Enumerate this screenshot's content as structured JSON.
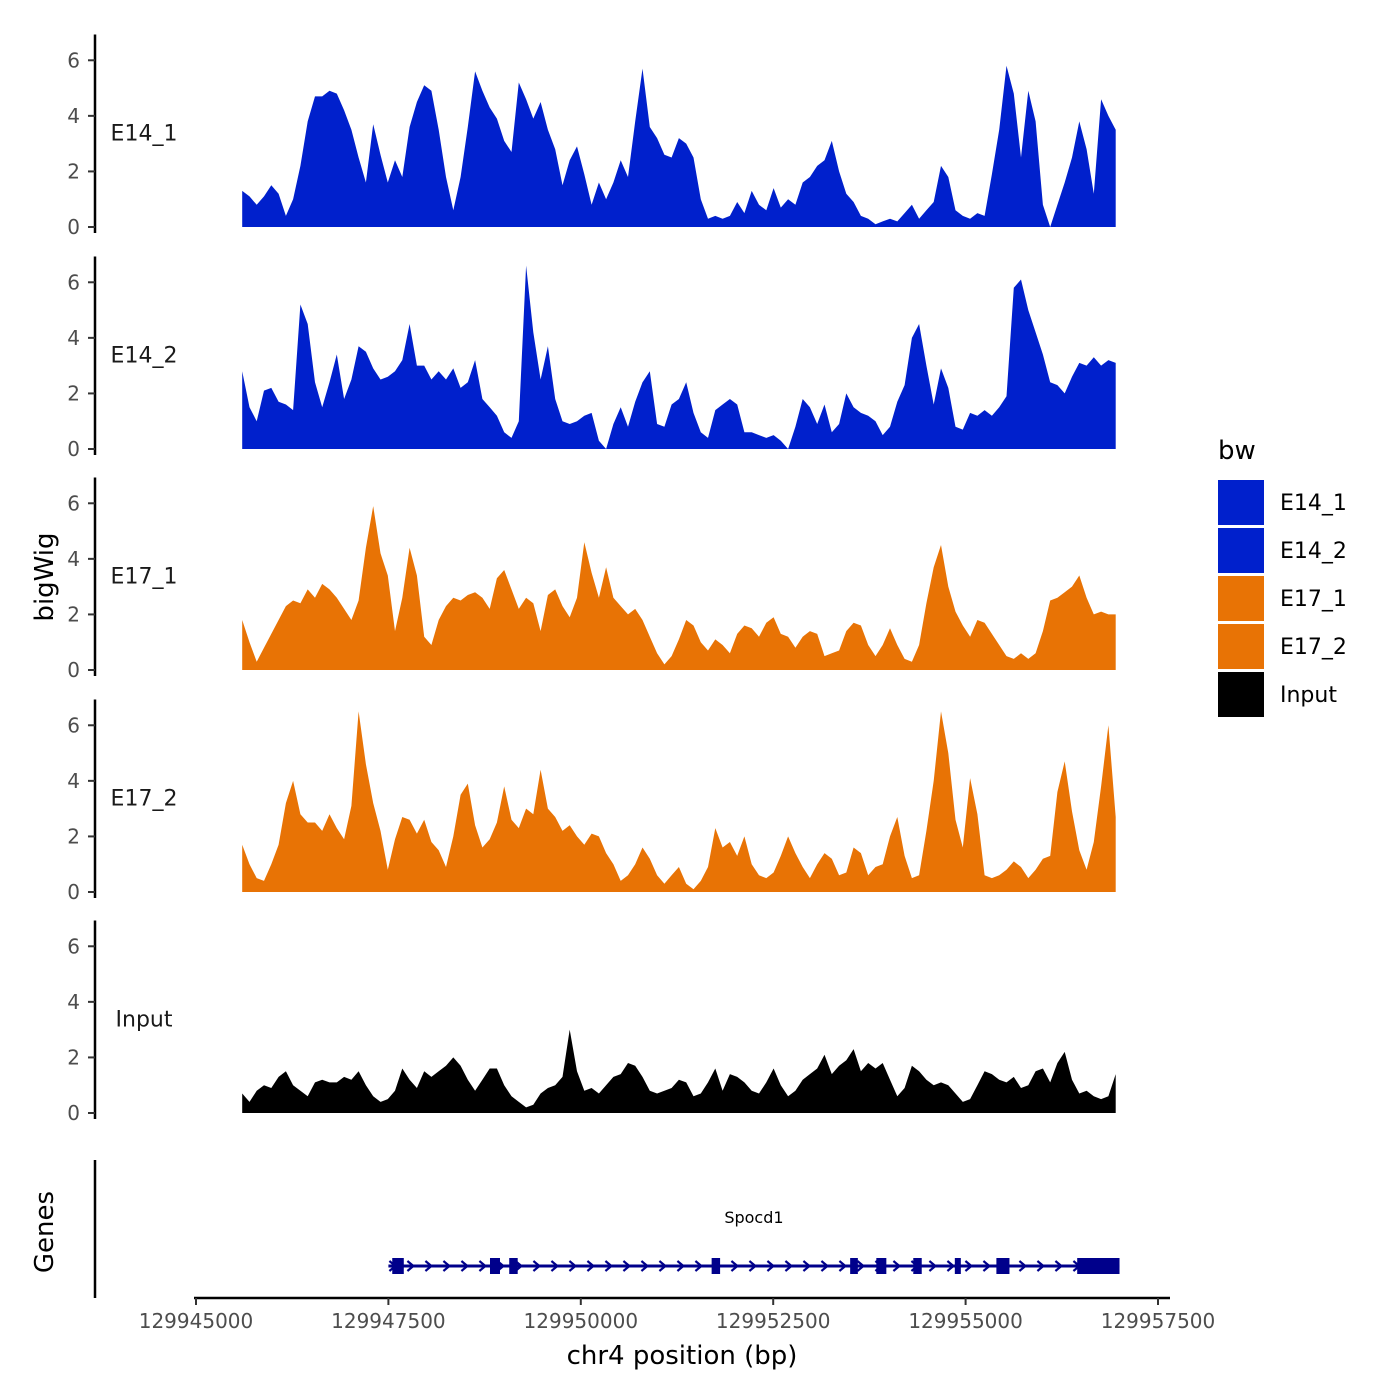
{
  "chart_data": {
    "type": "area",
    "title": "",
    "xlabel": "chr4 position (bp)",
    "ylabel": "bigWig",
    "xlim": [
      129945000,
      129957500
    ],
    "ylim": [
      0,
      7
    ],
    "x_ticks": [
      129945000,
      129947500,
      129950000,
      129952500,
      129955000,
      129957500
    ],
    "y_ticks": [
      0,
      2,
      4,
      6
    ],
    "grid": false,
    "legend": {
      "title": "bw",
      "position": "right",
      "entries": [
        {
          "name": "E14_1",
          "color": "#0020cc"
        },
        {
          "name": "E14_2",
          "color": "#0020cc"
        },
        {
          "name": "E17_1",
          "color": "#e87305"
        },
        {
          "name": "E17_2",
          "color": "#e87305"
        },
        {
          "name": "Input",
          "color": "#000000"
        }
      ]
    },
    "x_range": [
      129945600,
      129956950
    ],
    "series": [
      {
        "name": "E14_1",
        "color": "#0020cc",
        "values": [
          1.3,
          1.1,
          0.8,
          1.1,
          1.5,
          1.2,
          0.4,
          1.0,
          2.2,
          3.8,
          4.7,
          4.7,
          4.9,
          4.8,
          4.2,
          3.5,
          2.5,
          1.6,
          3.7,
          2.6,
          1.6,
          2.4,
          1.8,
          3.6,
          4.5,
          5.1,
          4.9,
          3.5,
          1.8,
          0.6,
          1.8,
          3.6,
          5.6,
          4.9,
          4.3,
          3.9,
          3.1,
          2.7,
          5.2,
          4.6,
          3.9,
          4.5,
          3.5,
          2.8,
          1.5,
          2.4,
          2.9,
          1.9,
          0.8,
          1.6,
          1.0,
          1.6,
          2.4,
          1.8,
          3.8,
          5.7,
          3.6,
          3.2,
          2.6,
          2.5,
          3.2,
          3.0,
          2.5,
          1.0,
          0.3,
          0.4,
          0.3,
          0.4,
          0.9,
          0.5,
          1.3,
          0.8,
          0.6,
          1.4,
          0.7,
          1.0,
          0.8,
          1.6,
          1.8,
          2.2,
          2.4,
          3.1,
          2.0,
          1.2,
          0.9,
          0.4,
          0.3,
          0.1,
          0.2,
          0.3,
          0.2,
          0.5,
          0.8,
          0.3,
          0.6,
          0.9,
          2.2,
          1.8,
          0.6,
          0.4,
          0.3,
          0.5,
          0.4,
          1.9,
          3.5,
          5.8,
          4.8,
          2.5,
          4.9,
          3.8,
          0.8,
          0.0,
          0.8,
          1.6,
          2.5,
          3.8,
          2.8,
          1.2,
          4.6,
          4.0,
          3.5
        ]
      },
      {
        "name": "E14_2",
        "color": "#0020cc",
        "values": [
          2.8,
          1.5,
          1.0,
          2.1,
          2.2,
          1.7,
          1.6,
          1.4,
          5.2,
          4.5,
          2.4,
          1.5,
          2.4,
          3.4,
          1.8,
          2.5,
          3.7,
          3.5,
          2.9,
          2.5,
          2.6,
          2.8,
          3.2,
          4.5,
          3.0,
          3.0,
          2.5,
          2.8,
          2.5,
          2.9,
          2.2,
          2.4,
          3.2,
          1.8,
          1.5,
          1.2,
          0.6,
          0.4,
          1.0,
          6.6,
          4.2,
          2.5,
          3.7,
          1.8,
          1.0,
          0.9,
          1.0,
          1.2,
          1.3,
          0.3,
          0.0,
          0.9,
          1.5,
          0.8,
          1.7,
          2.4,
          2.8,
          0.9,
          0.8,
          1.6,
          1.8,
          2.4,
          1.3,
          0.6,
          0.4,
          1.4,
          1.6,
          1.8,
          1.6,
          0.6,
          0.6,
          0.5,
          0.4,
          0.5,
          0.3,
          0.0,
          0.8,
          1.8,
          1.5,
          0.9,
          1.6,
          0.6,
          0.9,
          2.0,
          1.5,
          1.3,
          1.2,
          1.0,
          0.5,
          0.8,
          1.7,
          2.3,
          4.0,
          4.5,
          3.0,
          1.6,
          2.9,
          2.2,
          0.8,
          0.7,
          1.3,
          1.2,
          1.4,
          1.2,
          1.5,
          1.9,
          5.8,
          6.1,
          5.0,
          4.2,
          3.4,
          2.4,
          2.3,
          2.0,
          2.6,
          3.1,
          3.0,
          3.3,
          3.0,
          3.2,
          3.1
        ]
      },
      {
        "name": "E17_1",
        "color": "#e87305",
        "values": [
          1.8,
          1.0,
          0.3,
          0.8,
          1.3,
          1.8,
          2.3,
          2.5,
          2.4,
          2.9,
          2.6,
          3.1,
          2.9,
          2.6,
          2.2,
          1.8,
          2.5,
          4.4,
          5.9,
          4.2,
          3.4,
          1.4,
          2.6,
          4.4,
          3.4,
          1.2,
          0.9,
          1.8,
          2.3,
          2.6,
          2.5,
          2.7,
          2.8,
          2.6,
          2.2,
          3.3,
          3.6,
          2.9,
          2.2,
          2.6,
          2.4,
          1.4,
          2.7,
          2.9,
          2.3,
          1.9,
          2.6,
          4.6,
          3.5,
          2.6,
          3.7,
          2.6,
          2.3,
          2.0,
          2.2,
          1.8,
          1.2,
          0.6,
          0.2,
          0.5,
          1.1,
          1.8,
          1.6,
          1.0,
          0.7,
          1.1,
          0.9,
          0.6,
          1.3,
          1.6,
          1.5,
          1.2,
          1.7,
          1.9,
          1.3,
          1.2,
          0.8,
          1.2,
          1.4,
          1.3,
          0.5,
          0.6,
          0.7,
          1.4,
          1.7,
          1.6,
          0.9,
          0.5,
          0.9,
          1.5,
          0.9,
          0.4,
          0.3,
          0.9,
          2.4,
          3.7,
          4.5,
          3.0,
          2.1,
          1.6,
          1.2,
          1.8,
          1.7,
          1.3,
          0.9,
          0.5,
          0.4,
          0.6,
          0.4,
          0.6,
          1.4,
          2.5,
          2.6,
          2.8,
          3.0,
          3.4,
          2.6,
          2.0,
          2.1,
          2.0,
          2.0
        ]
      },
      {
        "name": "E17_2",
        "color": "#e87305",
        "values": [
          1.7,
          1.0,
          0.5,
          0.4,
          1.0,
          1.7,
          3.2,
          4.0,
          2.8,
          2.5,
          2.5,
          2.2,
          2.8,
          2.3,
          1.9,
          3.1,
          6.5,
          4.6,
          3.2,
          2.2,
          0.8,
          1.9,
          2.7,
          2.6,
          2.1,
          2.6,
          1.8,
          1.5,
          0.9,
          2.0,
          3.5,
          3.9,
          2.4,
          1.6,
          1.9,
          2.5,
          3.8,
          2.6,
          2.3,
          3.0,
          2.8,
          4.4,
          3.0,
          2.7,
          2.2,
          2.4,
          2.0,
          1.7,
          2.1,
          2.0,
          1.4,
          1.0,
          0.4,
          0.6,
          1.0,
          1.6,
          1.2,
          0.6,
          0.3,
          0.6,
          0.9,
          0.3,
          0.1,
          0.4,
          0.9,
          2.3,
          1.6,
          1.8,
          1.3,
          2.0,
          1.0,
          0.6,
          0.5,
          0.7,
          1.3,
          2.0,
          1.4,
          0.9,
          0.5,
          1.0,
          1.4,
          1.2,
          0.6,
          0.7,
          1.6,
          1.4,
          0.6,
          0.9,
          1.0,
          2.0,
          2.7,
          1.3,
          0.5,
          0.6,
          2.2,
          4.0,
          6.5,
          5.0,
          2.6,
          1.6,
          4.1,
          2.8,
          0.6,
          0.5,
          0.6,
          0.8,
          1.1,
          0.9,
          0.5,
          0.8,
          1.2,
          1.3,
          3.6,
          4.7,
          2.9,
          1.5,
          0.8,
          1.8,
          3.8,
          6.0,
          2.7
        ]
      },
      {
        "name": "Input",
        "color": "#000000",
        "values": [
          0.7,
          0.4,
          0.8,
          1.0,
          0.9,
          1.3,
          1.5,
          1.0,
          0.8,
          0.6,
          1.1,
          1.2,
          1.1,
          1.1,
          1.3,
          1.2,
          1.5,
          1.0,
          0.6,
          0.4,
          0.5,
          0.8,
          1.6,
          1.2,
          0.9,
          1.5,
          1.3,
          1.5,
          1.7,
          2.0,
          1.7,
          1.2,
          0.8,
          1.2,
          1.6,
          1.6,
          1.0,
          0.6,
          0.4,
          0.2,
          0.3,
          0.7,
          0.9,
          1.0,
          1.3,
          3.0,
          1.5,
          0.8,
          0.9,
          0.7,
          1.0,
          1.3,
          1.4,
          1.8,
          1.7,
          1.3,
          0.8,
          0.7,
          0.8,
          0.9,
          1.2,
          1.1,
          0.6,
          0.7,
          1.1,
          1.6,
          0.8,
          1.4,
          1.3,
          1.1,
          0.8,
          0.7,
          1.1,
          1.6,
          1.0,
          0.6,
          0.8,
          1.2,
          1.4,
          1.6,
          2.1,
          1.4,
          1.7,
          1.9,
          2.3,
          1.5,
          1.8,
          1.6,
          1.8,
          1.2,
          0.6,
          0.9,
          1.7,
          1.5,
          1.2,
          1.0,
          1.1,
          1.0,
          0.7,
          0.4,
          0.5,
          1.0,
          1.5,
          1.4,
          1.2,
          1.1,
          1.3,
          0.9,
          1.0,
          1.5,
          1.6,
          1.1,
          1.8,
          2.2,
          1.2,
          0.7,
          0.8,
          0.6,
          0.5,
          0.6,
          1.4
        ]
      }
    ],
    "genes": [
      {
        "name": "Spocd1",
        "strand": "+",
        "start": 129947500,
        "end": 129957000,
        "color": "#00008b",
        "exons": [
          [
            129947550,
            129947700
          ],
          [
            129948820,
            129948950
          ],
          [
            129949070,
            129949180
          ],
          [
            129951700,
            129951810
          ],
          [
            129953500,
            129953600
          ],
          [
            129953840,
            129953970
          ],
          [
            129954320,
            129954430
          ],
          [
            129954860,
            129954930
          ],
          [
            129955400,
            129955570
          ],
          [
            129956450,
            129957000
          ]
        ]
      }
    ]
  }
}
